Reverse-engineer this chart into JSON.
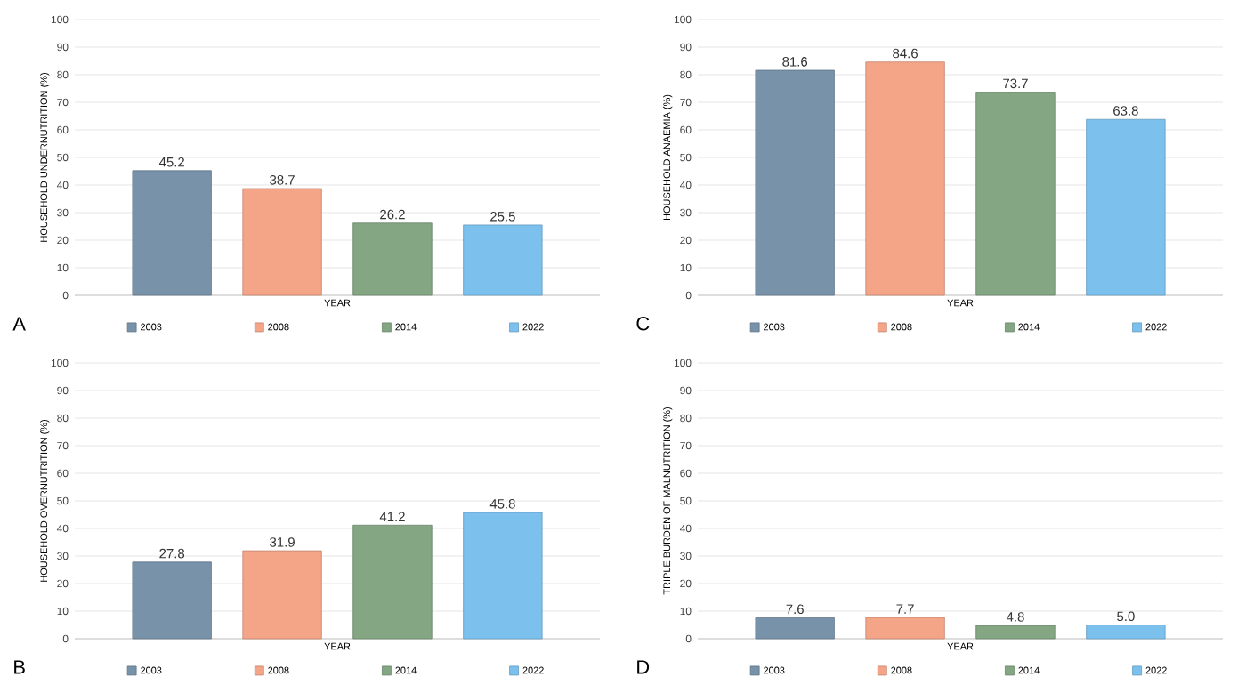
{
  "chart_data": [
    {
      "type": "bar",
      "categories": [
        null
      ],
      "xlabel": "YEAR",
      "ylabel": "HOUSEHOLD UNDERNUTRITION (%)",
      "ylim": [
        0,
        100
      ],
      "yticks": [
        0,
        10,
        20,
        30,
        40,
        50,
        60,
        70,
        80,
        90,
        100
      ],
      "grid": "y",
      "legend": "bottom",
      "data_labels": true,
      "annotations": [
        "A"
      ],
      "series": [
        {
          "name": "2003",
          "color": "#7892aa",
          "values": [
            45.2
          ]
        },
        {
          "name": "2008",
          "color": "#f4a588",
          "values": [
            38.7
          ]
        },
        {
          "name": "2014",
          "color": "#84a683",
          "values": [
            26.2
          ]
        },
        {
          "name": "2022",
          "color": "#7cc0ee",
          "values": [
            25.5
          ]
        }
      ]
    },
    {
      "type": "bar",
      "categories": [
        null
      ],
      "xlabel": "YEAR",
      "ylabel": "HOUSEHOLD ANAEMIA (%)",
      "ylim": [
        0,
        100
      ],
      "yticks": [
        0,
        10,
        20,
        30,
        40,
        50,
        60,
        70,
        80,
        90,
        100
      ],
      "grid": "y",
      "legend": "bottom",
      "data_labels": true,
      "annotations": [
        "C"
      ],
      "series": [
        {
          "name": "2003",
          "color": "#7892aa",
          "values": [
            81.6
          ]
        },
        {
          "name": "2008",
          "color": "#f4a588",
          "values": [
            84.6
          ]
        },
        {
          "name": "2014",
          "color": "#84a683",
          "values": [
            73.7
          ]
        },
        {
          "name": "2022",
          "color": "#7cc0ee",
          "values": [
            63.8
          ]
        }
      ]
    },
    {
      "type": "bar",
      "categories": [
        null
      ],
      "xlabel": "YEAR",
      "ylabel": "HOUSEHOLD OVERNUTRITION (%)",
      "ylim": [
        0,
        100
      ],
      "yticks": [
        0,
        10,
        20,
        30,
        40,
        50,
        60,
        70,
        80,
        90,
        100
      ],
      "grid": "y",
      "legend": "bottom",
      "data_labels": true,
      "annotations": [
        "B"
      ],
      "series": [
        {
          "name": "2003",
          "color": "#7892aa",
          "values": [
            27.8
          ]
        },
        {
          "name": "2008",
          "color": "#f4a588",
          "values": [
            31.9
          ]
        },
        {
          "name": "2014",
          "color": "#84a683",
          "values": [
            41.2
          ]
        },
        {
          "name": "2022",
          "color": "#7cc0ee",
          "values": [
            45.8
          ]
        }
      ]
    },
    {
      "type": "bar",
      "categories": [
        null
      ],
      "xlabel": "YEAR",
      "ylabel": "TRIPLE BURDEN OF MALNUTRITION (%)",
      "ylim": [
        0,
        100
      ],
      "yticks": [
        0,
        10,
        20,
        30,
        40,
        50,
        60,
        70,
        80,
        90,
        100
      ],
      "grid": "y",
      "legend": "bottom",
      "annotations": [
        "D"
      ],
      "series": [
        {
          "name": "2003",
          "color": "#7892aa",
          "values": [
            7.6
          ],
          "value_labels": [
            "7.6"
          ]
        },
        {
          "name": "2008",
          "color": "#f4a588",
          "values": [
            7.7
          ],
          "value_labels": [
            "7.7"
          ]
        },
        {
          "name": "2014",
          "color": "#84a683",
          "values": [
            4.8
          ],
          "value_labels": [
            "4.8"
          ]
        },
        {
          "name": "2022",
          "color": "#7cc0ee",
          "values": [
            5.0
          ],
          "value_labels": [
            "5.0"
          ]
        }
      ]
    }
  ]
}
